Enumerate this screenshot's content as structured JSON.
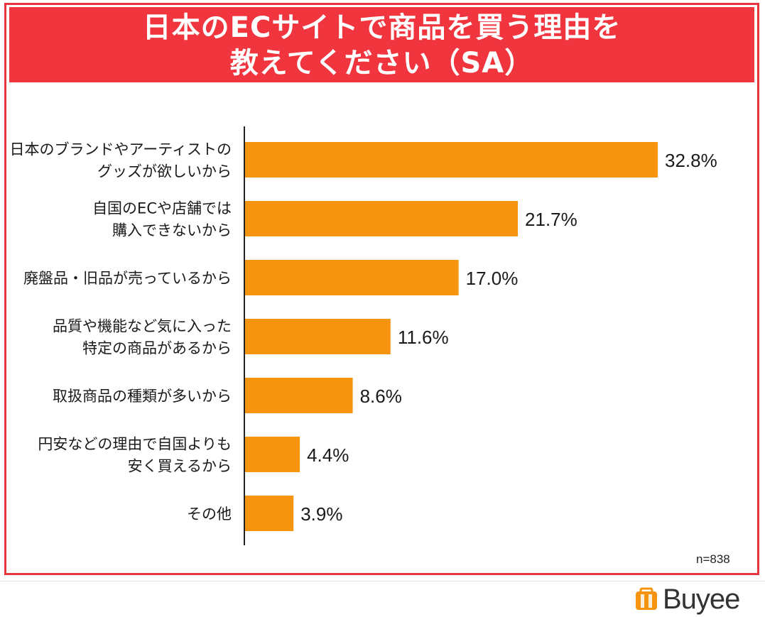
{
  "title": {
    "line1": "日本のECサイトで商品を買う理由を",
    "line2": "教えてください（SA）"
  },
  "note": "n=838",
  "brand": {
    "name": "Buyee",
    "icon": "buyee-logo-icon"
  },
  "colors": {
    "banner": "#f0353e",
    "bar": "#f7940f",
    "frame": "#e8343c"
  },
  "chart_data": {
    "type": "bar",
    "orientation": "horizontal",
    "categories": [
      [
        "日本のブランドやアーティストの",
        "グッズが欲しいから"
      ],
      [
        "自国のECや店舗では",
        "購入できないから"
      ],
      [
        "廃盤品・旧品が売っているから"
      ],
      [
        "品質や機能など気に入った",
        "特定の商品があるから"
      ],
      [
        "取扱商品の種類が多いから"
      ],
      [
        "円安などの理由で自国よりも",
        "安く買えるから"
      ],
      [
        "その他"
      ]
    ],
    "values": [
      32.8,
      21.7,
      17.0,
      11.6,
      8.6,
      4.4,
      3.9
    ],
    "value_labels": [
      "32.8%",
      "21.7%",
      "17.0%",
      "11.6%",
      "8.6%",
      "4.4%",
      "3.9%"
    ],
    "xlim": [
      0,
      32.8
    ],
    "grid": false,
    "legend": "none"
  }
}
